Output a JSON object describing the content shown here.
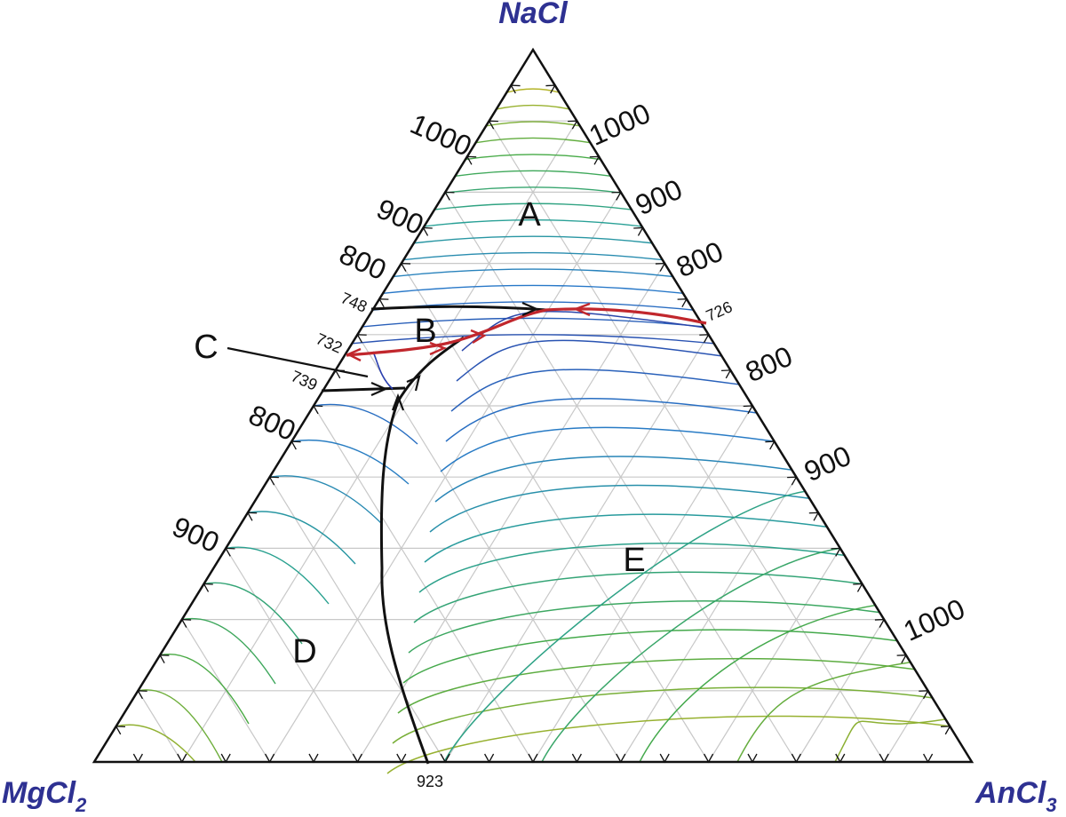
{
  "vertices": {
    "top": "NaCl",
    "left": "MgCl",
    "left_sub": "2",
    "right": "AnCl",
    "right_sub": "3"
  },
  "regions": [
    "A",
    "B",
    "C",
    "D",
    "E"
  ],
  "isotherm_labels": {
    "left": [
      "1000",
      "900",
      "800",
      "800",
      "900"
    ],
    "right": [
      "1000",
      "900",
      "800",
      "800",
      "900",
      "1000"
    ]
  },
  "point_labels": [
    "748",
    "732",
    "739",
    "726",
    "923"
  ],
  "colors": {
    "vertex_label": "#2e3192",
    "grid": "#c8c8c8",
    "boundary": "#111111",
    "peritectic": "#c1272d"
  }
}
